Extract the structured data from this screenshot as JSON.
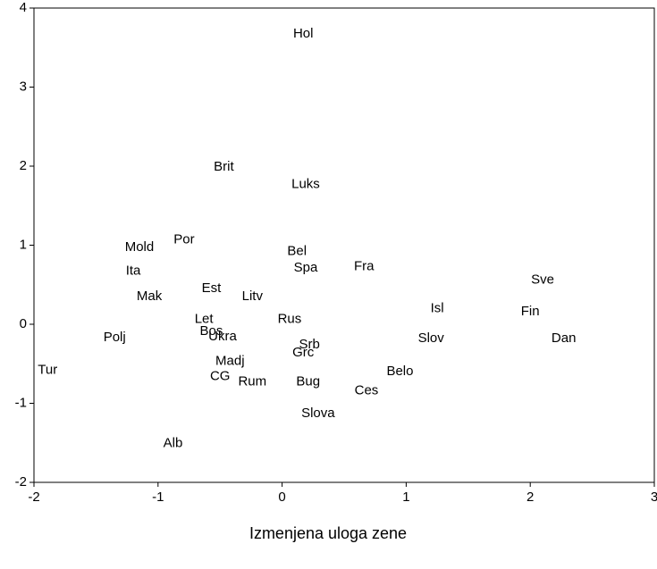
{
  "chart_data": {
    "type": "scatter",
    "x_label": "Izmenjena uloga zene",
    "labels": [
      "Hol",
      "Brit",
      "Luks",
      "Mold",
      "Por",
      "Ita",
      "Bel",
      "Spa",
      "Fra",
      "Sve",
      "Mak",
      "Est",
      "Litv",
      "Isl",
      "Fin",
      "Let",
      "Rus",
      "Bos",
      "Ukra",
      "Polj",
      "Srb",
      "Slov",
      "Dan",
      "Grc",
      "Madj",
      "Tur",
      "Belo",
      "CG",
      "Rum",
      "Bug",
      "Ces",
      "Slova",
      "Alb"
    ],
    "x": [
      0.17,
      -0.47,
      0.19,
      -1.15,
      -0.79,
      -1.2,
      0.12,
      0.19,
      0.66,
      2.1,
      -1.07,
      -0.57,
      -0.24,
      1.25,
      2.0,
      -0.63,
      0.06,
      -0.57,
      -0.48,
      -1.35,
      0.22,
      1.2,
      2.27,
      0.17,
      -0.42,
      -1.89,
      0.95,
      -0.5,
      -0.24,
      0.21,
      0.68,
      0.29,
      -0.88
    ],
    "values": [
      3.67,
      1.99,
      1.77,
      0.97,
      1.07,
      0.67,
      0.92,
      0.71,
      0.73,
      0.56,
      0.35,
      0.45,
      0.35,
      0.2,
      0.16,
      0.06,
      0.06,
      -0.09,
      -0.16,
      -0.17,
      -0.26,
      -0.18,
      -0.18,
      -0.36,
      -0.47,
      -0.58,
      -0.6,
      -0.66,
      -0.73,
      -0.73,
      -0.84,
      -1.13,
      -1.51
    ],
    "xlim": [
      -2,
      3
    ],
    "xticks": [
      -2,
      -1,
      0,
      1,
      2,
      3
    ],
    "ylim": [
      -2,
      4
    ],
    "yticks": [
      -2,
      -1,
      0,
      1,
      2,
      3,
      4
    ],
    "grid": false
  }
}
